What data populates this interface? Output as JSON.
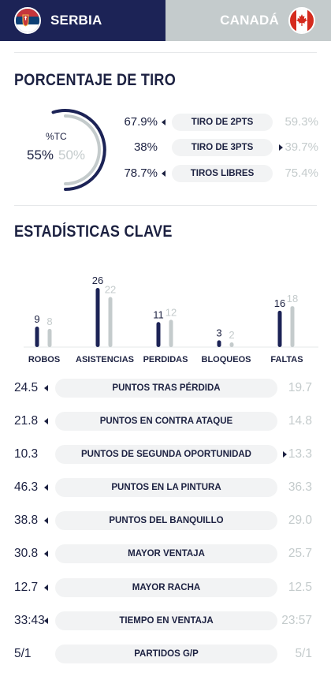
{
  "header": {
    "home_team": "SERBIA",
    "away_team": "CANADÁ",
    "home_color": "#1c2356",
    "away_color": "#c4cbcc",
    "home_flag_icon": "serbia-flag-icon",
    "away_flag_icon": "canada-flag-icon"
  },
  "shooting": {
    "title": "PORCENTAJE DE TIRO",
    "fg_label": "%TC",
    "fg_home": "55%",
    "fg_away": "50%",
    "fg_home_value": 55,
    "fg_away_value": 50,
    "rows": [
      {
        "label": "TIRO DE 2PTS",
        "home": "67.9%",
        "away": "59.3%",
        "leader": "home"
      },
      {
        "label": "TIRO DE 3PTS",
        "home": "38%",
        "away": "39.7%",
        "leader": "away"
      },
      {
        "label": "TIROS LIBRES",
        "home": "78.7%",
        "away": "75.4%",
        "leader": "home"
      }
    ]
  },
  "key_stats": {
    "title": "ESTADÍSTICAS CLAVE",
    "chart_data": {
      "type": "bar",
      "categories": [
        "ROBOS",
        "ASISTENCIAS",
        "PERDIDAS",
        "BLOQUEOS",
        "FALTAS"
      ],
      "series": [
        {
          "name": "SERBIA",
          "values": [
            9,
            26,
            11,
            3,
            16
          ],
          "color": "#1c2356"
        },
        {
          "name": "CANADÁ",
          "values": [
            8,
            22,
            12,
            2,
            18
          ],
          "color": "#c4cbcc"
        }
      ],
      "grid": false
    },
    "rows": [
      {
        "label": "PUNTOS TRAS PÉRDIDA",
        "home": "24.5",
        "away": "19.7",
        "leader": "home"
      },
      {
        "label": "PUNTOS EN CONTRA ATAQUE",
        "home": "21.8",
        "away": "14.8",
        "leader": "home"
      },
      {
        "label": "PUNTOS DE SEGUNDA OPORTUNIDAD",
        "home": "10.3",
        "away": "13.3",
        "leader": "away"
      },
      {
        "label": "PUNTOS EN LA PINTURA",
        "home": "46.3",
        "away": "36.3",
        "leader": "home"
      },
      {
        "label": "PUNTOS DEL BANQUILLO",
        "home": "38.8",
        "away": "29.0",
        "leader": "home"
      },
      {
        "label": "MAYOR VENTAJA",
        "home": "30.8",
        "away": "25.7",
        "leader": "home"
      },
      {
        "label": "MAYOR RACHA",
        "home": "12.7",
        "away": "12.5",
        "leader": "home"
      },
      {
        "label": "TIEMPO EN VENTAJA",
        "home": "33:43",
        "away": "23:57",
        "leader": "home"
      },
      {
        "label": "PARTIDOS G/P",
        "home": "5/1",
        "away": "5/1",
        "leader": "none"
      }
    ]
  }
}
